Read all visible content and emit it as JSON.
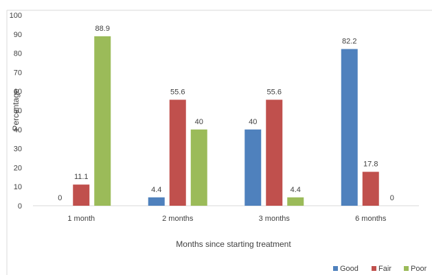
{
  "chart_data": {
    "type": "bar",
    "title": "",
    "xlabel": "Months since starting treatment",
    "ylabel": "Percentage",
    "categories": [
      "1 month",
      "2 months",
      "3 months",
      "6 months"
    ],
    "ylim": [
      0,
      100
    ],
    "yticks": [
      0,
      10,
      20,
      30,
      40,
      50,
      60,
      70,
      80,
      90,
      100
    ],
    "grid": false,
    "legend_position": "bottom-right",
    "series": [
      {
        "name": "Good",
        "color": "#4f81bd",
        "values": [
          0,
          4.4,
          40,
          82.2
        ]
      },
      {
        "name": "Fair",
        "color": "#c0504d",
        "values": [
          11.1,
          55.6,
          55.6,
          17.8
        ]
      },
      {
        "name": "Poor",
        "color": "#9bbb59",
        "values": [
          88.9,
          40,
          4.4,
          0
        ]
      }
    ]
  }
}
